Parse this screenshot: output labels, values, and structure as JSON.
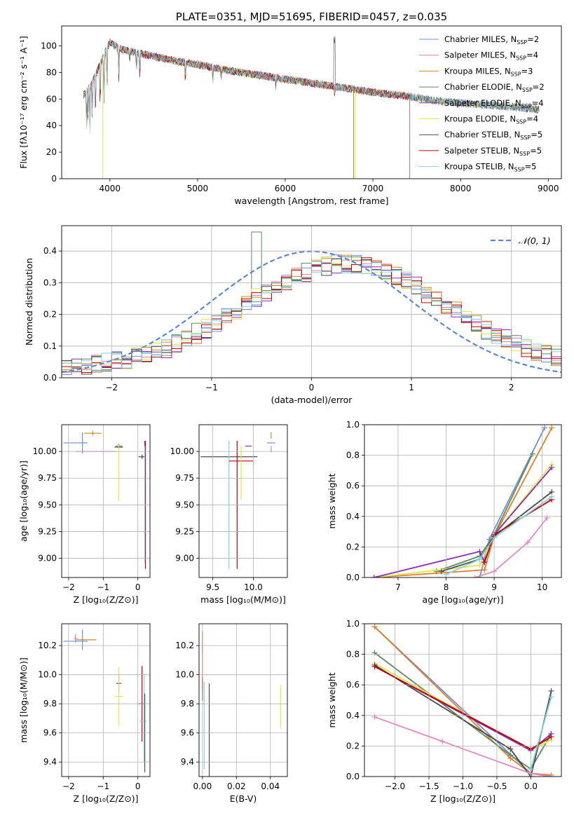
{
  "chart_data": [
    {
      "id": "spectrum",
      "type": "line",
      "title": "PLATE=0351, MJD=51695, FIBERID=0457, z=0.035",
      "xlabel": "wavelength [Angstrom, rest frame]",
      "ylabel": "Flux [fλ10⁻¹⁷ erg cm⁻² s⁻¹ A⁻¹]",
      "xlim": [
        3450,
        9150
      ],
      "ylim": [
        0,
        115
      ],
      "xticks": [
        4000,
        5000,
        6000,
        7000,
        8000,
        9000
      ],
      "yticks": [
        0,
        20,
        40,
        60,
        80,
        100
      ],
      "grid": false,
      "legend_position": "top-right",
      "legend": [
        {
          "label": "Chabrier MILES, N",
          "sub": "SSP",
          "tail": "=2",
          "color": "#6b8fd8"
        },
        {
          "label": "Salpeter MILES, N",
          "sub": "SSP",
          "tail": "=4",
          "color": "#e07ab8"
        },
        {
          "label": "Kroupa MILES, N",
          "sub": "SSP",
          "tail": "=3",
          "color": "#c58a1d"
        },
        {
          "label": "Chabrier ELODIE, N",
          "sub": "SSP",
          "tail": "=2",
          "color": "#5e8a5e"
        },
        {
          "label": "Salpeter ELODIE, N",
          "sub": "SSP",
          "tail": "=4",
          "color": "#8b2bb8"
        },
        {
          "label": "Kroupa ELODIE, N",
          "sub": "SSP",
          "tail": "=4",
          "color": "#e1e44a"
        },
        {
          "label": "Chabrier STELIB, N",
          "sub": "SSP",
          "tail": "=5",
          "color": "#4a4a4a"
        },
        {
          "label": "Salpeter STELIB, N",
          "sub": "SSP",
          "tail": "=5",
          "color": "#c00000"
        },
        {
          "label": "Kroupa STELIB, N",
          "sub": "SSP",
          "tail": "=5",
          "color": "#7fd3df"
        }
      ],
      "continuum": [
        [
          3700,
          63
        ],
        [
          3800,
          72
        ],
        [
          3900,
          88
        ],
        [
          4000,
          103
        ],
        [
          4100,
          98
        ],
        [
          4300,
          95
        ],
        [
          4500,
          92
        ],
        [
          4800,
          88
        ],
        [
          5000,
          86
        ],
        [
          5300,
          82
        ],
        [
          5600,
          79
        ],
        [
          6000,
          75
        ],
        [
          6300,
          72
        ],
        [
          6600,
          69
        ],
        [
          7000,
          65
        ],
        [
          7400,
          62
        ],
        [
          7800,
          58
        ],
        [
          8200,
          56
        ],
        [
          8600,
          54
        ],
        [
          8900,
          52
        ]
      ]
    },
    {
      "id": "residuals",
      "type": "histogram",
      "xlabel": "(data-model)/error",
      "ylabel": "Normed distribution",
      "xlim": [
        -2.5,
        2.5
      ],
      "ylim": [
        0,
        0.48
      ],
      "xticks": [
        -2,
        -1,
        0,
        1,
        2
      ],
      "yticks": [
        0.0,
        0.1,
        0.2,
        0.3,
        0.4
      ],
      "grid": true,
      "legend_position": "top-right",
      "reference_label": "𝒩(0, 1)",
      "reference_color": "#5b86d6",
      "bin_width": 0.1,
      "series": [
        {
          "color": "#6b8fd8",
          "shift": 0.0
        },
        {
          "color": "#e07ab8",
          "shift": 0.02
        },
        {
          "color": "#c58a1d",
          "shift": -0.015
        },
        {
          "color": "#5e8a5e",
          "shift": 0.03
        },
        {
          "color": "#8b2bb8",
          "shift": -0.02
        },
        {
          "color": "#e1e44a",
          "shift": 0.01
        },
        {
          "color": "#4a4a4a",
          "shift": -0.01
        },
        {
          "color": "#c00000",
          "shift": 0.015
        },
        {
          "color": "#7fd3df",
          "shift": -0.005
        }
      ]
    },
    {
      "id": "age-vs-z",
      "type": "errorbar",
      "xlabel": "Z [log₁₀(Z/Z⊙)]",
      "ylabel": "age  [log₁₀(age/yr)]",
      "xlim": [
        -2.2,
        0.35
      ],
      "ylim": [
        8.82,
        10.25
      ],
      "xticks": [
        -2,
        -1,
        0
      ],
      "yticks": [
        9.0,
        9.25,
        9.5,
        9.75,
        10.0
      ],
      "points": [
        {
          "x": -1.8,
          "y": 10.08,
          "xerr": 0.35,
          "yerr": 0.0,
          "color": "#6b8fd8"
        },
        {
          "x": -1.6,
          "y": 10.08,
          "xerr": 0.1,
          "yerr": 0.1,
          "color": "#6b8fd8"
        },
        {
          "x": -1.2,
          "y": 10.0,
          "xerr": 0.6,
          "yerr": 0.0,
          "color": "#e07ab8"
        },
        {
          "x": -1.3,
          "y": 10.17,
          "xerr": 0.25,
          "yerr": 0.02,
          "color": "#c58a1d"
        },
        {
          "x": -0.55,
          "y": 10.05,
          "xerr": 0.1,
          "yerr": 0.02,
          "color": "#5e8a5e"
        },
        {
          "x": -0.55,
          "y": 10.04,
          "xerr": 0.12,
          "yerr": 0.02,
          "color": "#4a4a4a"
        },
        {
          "x": -0.55,
          "y": 9.8,
          "xerr": 0.0,
          "yerr": 0.26,
          "color": "#e1e44a"
        },
        {
          "x": 0.12,
          "y": 9.95,
          "xerr": 0.1,
          "yerr": 0.02,
          "color": "#4a4a4a"
        },
        {
          "x": 0.22,
          "y": 9.5,
          "xerr": 0.0,
          "yerr": 0.6,
          "color": "#c00000"
        },
        {
          "x": 0.2,
          "y": 9.55,
          "xerr": 0.0,
          "yerr": 0.55,
          "color": "#8b2bb8"
        },
        {
          "x": 0.2,
          "y": 9.5,
          "xerr": 0.0,
          "yerr": 0.55,
          "color": "#7fd3df"
        }
      ]
    },
    {
      "id": "age-vs-mass",
      "type": "errorbar",
      "xlabel": "mass [log₁₀(M/M⊙)]",
      "ylabel": "",
      "xlim": [
        9.33,
        10.42
      ],
      "ylim": [
        8.82,
        10.25
      ],
      "xticks": [
        9.5,
        10.0
      ],
      "yticks": [
        9.0,
        9.25,
        9.5,
        9.75,
        10.0
      ],
      "points": [
        {
          "x": 9.7,
          "y": 9.95,
          "xerr": 0.35,
          "yerr": 0.0,
          "color": "#4a4a4a"
        },
        {
          "x": 9.7,
          "y": 9.5,
          "xerr": 0.0,
          "yerr": 0.6,
          "color": "#7fd3df"
        },
        {
          "x": 9.8,
          "y": 9.5,
          "xerr": 0.0,
          "yerr": 0.6,
          "color": "#c00000"
        },
        {
          "x": 9.85,
          "y": 9.91,
          "xerr": 0.15,
          "yerr": 0.0,
          "color": "#c00000"
        },
        {
          "x": 9.85,
          "y": 9.8,
          "xerr": 0.0,
          "yerr": 0.25,
          "color": "#e1e44a"
        },
        {
          "x": 9.94,
          "y": 10.05,
          "xerr": 0.04,
          "yerr": 0.0,
          "color": "#8b2bb8"
        },
        {
          "x": 10.22,
          "y": 10.08,
          "xerr": 0.05,
          "yerr": 0.0,
          "color": "#6b8fd8"
        },
        {
          "x": 10.22,
          "y": 10.15,
          "xerr": 0.0,
          "yerr": 0.03,
          "color": "#c58a1d"
        },
        {
          "x": 10.22,
          "y": 10.02,
          "xerr": 0.0,
          "yerr": 0.03,
          "color": "#e07ab8"
        }
      ]
    },
    {
      "id": "weight-vs-age",
      "type": "line",
      "xlabel": "age  [log₁₀(age/yr)]",
      "ylabel": "mass weight",
      "xlim": [
        6.3,
        10.4
      ],
      "ylim": [
        0,
        1.0
      ],
      "xticks": [
        7,
        8,
        9,
        10
      ],
      "yticks": [
        0.0,
        0.2,
        0.4,
        0.6,
        0.8,
        1.0
      ],
      "grid": true,
      "series": [
        {
          "color": "#6b8fd8",
          "points": [
            [
              8.7,
              0.0
            ],
            [
              8.9,
              0.25
            ],
            [
              10.05,
              0.98
            ]
          ]
        },
        {
          "color": "#e67e22",
          "points": [
            [
              6.5,
              0.0
            ],
            [
              8.8,
              0.05
            ],
            [
              9.0,
              0.27
            ],
            [
              10.2,
              0.98
            ]
          ]
        },
        {
          "color": "#5e8a5e",
          "points": [
            [
              7.8,
              0.04
            ],
            [
              8.7,
              0.14
            ],
            [
              9.0,
              0.28
            ],
            [
              9.8,
              0.81
            ]
          ]
        },
        {
          "color": "#e1e44a",
          "points": [
            [
              6.5,
              0.0
            ],
            [
              8.7,
              0.08
            ],
            [
              9.0,
              0.28
            ],
            [
              10.2,
              0.74
            ]
          ]
        },
        {
          "color": "#8b2bb8",
          "points": [
            [
              6.5,
              0.0
            ],
            [
              8.7,
              0.17
            ],
            [
              8.8,
              0.1
            ],
            [
              9.0,
              0.28
            ],
            [
              10.2,
              0.72
            ]
          ]
        },
        {
          "color": "#4a4a4a",
          "points": [
            [
              7.9,
              0.04
            ],
            [
              8.7,
              0.12
            ],
            [
              9.0,
              0.27
            ],
            [
              10.2,
              0.56
            ]
          ]
        },
        {
          "color": "#c00000",
          "points": [
            [
              8.8,
              0.1
            ],
            [
              9.0,
              0.28
            ],
            [
              10.2,
              0.51
            ]
          ]
        },
        {
          "color": "#e48ac2",
          "points": [
            [
              8.6,
              0.0
            ],
            [
              9.0,
              0.04
            ],
            [
              9.7,
              0.23
            ],
            [
              10.1,
              0.39
            ]
          ]
        },
        {
          "color": "#7fd3df",
          "points": [
            [
              8.0,
              0.02
            ],
            [
              8.7,
              0.12
            ],
            [
              9.0,
              0.26
            ],
            [
              10.2,
              0.53
            ]
          ]
        }
      ]
    },
    {
      "id": "mass-vs-z",
      "type": "errorbar",
      "xlabel": "Z [log₁₀(Z/Z⊙)]",
      "ylabel": "mass [log₁₀(M/M⊙)]",
      "xlim": [
        -2.2,
        0.35
      ],
      "ylim": [
        9.3,
        10.35
      ],
      "xticks": [
        -2,
        -1,
        0
      ],
      "yticks": [
        9.4,
        9.6,
        9.8,
        10.0,
        10.2
      ],
      "points": [
        {
          "x": -1.8,
          "y": 10.23,
          "xerr": 0.35,
          "yerr": 0.0,
          "color": "#6b8fd8"
        },
        {
          "x": -1.6,
          "y": 10.24,
          "xerr": 0.05,
          "yerr": 0.07,
          "color": "#6b8fd8"
        },
        {
          "x": -1.5,
          "y": 10.24,
          "xerr": 0.3,
          "yerr": 0.0,
          "color": "#c58a1d"
        },
        {
          "x": -1.8,
          "y": 10.25,
          "xerr": 0.05,
          "yerr": 0.03,
          "color": "#e07ab8"
        },
        {
          "x": -0.55,
          "y": 9.94,
          "xerr": 0.07,
          "yerr": 0.06,
          "color": "#8b2bb8"
        },
        {
          "x": -0.55,
          "y": 9.85,
          "xerr": 0.12,
          "yerr": 0.2,
          "color": "#e1e44a"
        },
        {
          "x": 0.12,
          "y": 9.8,
          "xerr": 0.1,
          "yerr": 0.26,
          "color": "#c00000"
        },
        {
          "x": 0.15,
          "y": 9.68,
          "xerr": 0.1,
          "yerr": 0.0,
          "color": "#7fd3df"
        },
        {
          "x": 0.2,
          "y": 9.6,
          "xerr": 0.0,
          "yerr": 0.27,
          "color": "#4a4a4a"
        },
        {
          "x": 0.18,
          "y": 9.7,
          "xerr": 0.0,
          "yerr": 0.3,
          "color": "#7fd3df"
        }
      ]
    },
    {
      "id": "mass-vs-ebv",
      "type": "errorbar",
      "xlabel": "E(B-V)",
      "ylabel": "",
      "xlim": [
        -0.002,
        0.05
      ],
      "ylim": [
        9.3,
        10.35
      ],
      "xticks": [
        0.0,
        0.02,
        0.04
      ],
      "yticks": [
        9.4,
        9.6,
        9.8,
        10.0,
        10.2
      ],
      "points": [
        {
          "x": 0.0,
          "y": 10.22,
          "xerr": 0.0,
          "yerr": 0.08,
          "color": "#6b8fd8"
        },
        {
          "x": 0.0,
          "y": 10.1,
          "xerr": 0.0,
          "yerr": 0.2,
          "color": "#e67e22"
        },
        {
          "x": 0.0,
          "y": 9.9,
          "xerr": 0.0,
          "yerr": 0.08,
          "color": "#c00000"
        },
        {
          "x": 0.001,
          "y": 9.65,
          "xerr": 0.0,
          "yerr": 0.3,
          "color": "#7fd3df"
        },
        {
          "x": 0.004,
          "y": 9.62,
          "xerr": 0.0,
          "yerr": 0.32,
          "color": "#4a4a4a"
        },
        {
          "x": 0.046,
          "y": 9.78,
          "xerr": 0.0,
          "yerr": 0.15,
          "color": "#e1e44a"
        }
      ]
    },
    {
      "id": "weight-vs-z",
      "type": "line",
      "xlabel": "Z [log₁₀(Z/Z⊙)]",
      "ylabel": "mass weight",
      "xlim": [
        -2.45,
        0.45
      ],
      "ylim": [
        0,
        1.0
      ],
      "xticks": [
        -2.0,
        -1.5,
        -1.0,
        -0.5,
        0.0
      ],
      "yticks": [
        0.0,
        0.2,
        0.4,
        0.6,
        0.8,
        1.0
      ],
      "grid": true,
      "series": [
        {
          "color": "#6b8fd8",
          "points": [
            [
              -2.3,
              0.98
            ],
            [
              0.0,
              0.02
            ],
            [
              0.3,
              0.0
            ]
          ]
        },
        {
          "color": "#e67e22",
          "points": [
            [
              -2.3,
              0.98
            ],
            [
              -0.3,
              0.12
            ],
            [
              0.0,
              0.02
            ],
            [
              0.3,
              0.01
            ]
          ]
        },
        {
          "color": "#5e8a5e",
          "points": [
            [
              -2.3,
              0.81
            ],
            [
              -0.3,
              0.14
            ],
            [
              0.0,
              0.05
            ],
            [
              0.3,
              0.28
            ]
          ]
        },
        {
          "color": "#e1e44a",
          "points": [
            [
              -2.3,
              0.74
            ],
            [
              0.0,
              0.17
            ],
            [
              0.3,
              0.24
            ]
          ]
        },
        {
          "color": "#8b2bb8",
          "points": [
            [
              -2.3,
              0.72
            ],
            [
              0.0,
              0.17
            ],
            [
              0.3,
              0.28
            ]
          ]
        },
        {
          "color": "#4a4a4a",
          "points": [
            [
              -2.3,
              0.73
            ],
            [
              -0.3,
              0.18
            ],
            [
              0.0,
              0.0
            ],
            [
              0.3,
              0.56
            ]
          ]
        },
        {
          "color": "#c00000",
          "points": [
            [
              -2.3,
              0.72
            ],
            [
              0.0,
              0.18
            ],
            [
              0.3,
              0.26
            ]
          ]
        },
        {
          "color": "#e48ac2",
          "points": [
            [
              -2.3,
              0.39
            ],
            [
              -1.3,
              0.23
            ],
            [
              0.0,
              0.02
            ],
            [
              0.3,
              0.0
            ]
          ]
        },
        {
          "color": "#7fd3df",
          "points": [
            [
              0.0,
              0.05
            ],
            [
              0.3,
              0.52
            ]
          ]
        }
      ]
    }
  ]
}
